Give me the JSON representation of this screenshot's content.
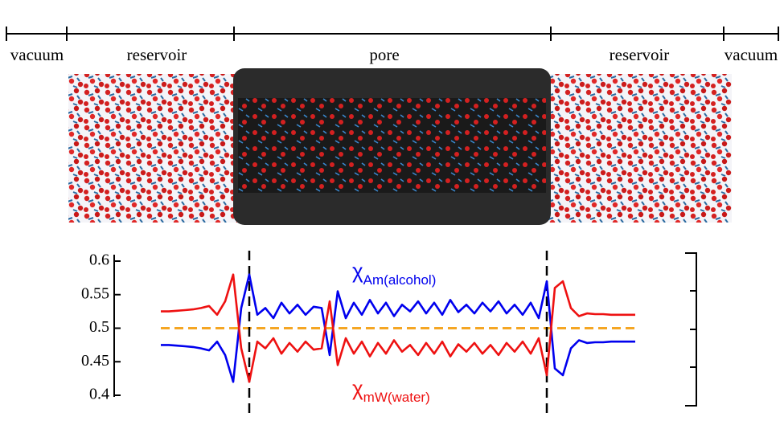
{
  "chart_data": {
    "type": "line",
    "regions": [
      "vacuum",
      "reservoir",
      "pore",
      "reservoir",
      "vacuum"
    ],
    "x": [
      0,
      1,
      2,
      3,
      4,
      5,
      6,
      7,
      8,
      9,
      10,
      11,
      12,
      13,
      14,
      15,
      16,
      17,
      18,
      19,
      20,
      21,
      22,
      23,
      24,
      25,
      26,
      27,
      28,
      29,
      30,
      31,
      32,
      33,
      34,
      35,
      36,
      37,
      38,
      39,
      40,
      41,
      42,
      43,
      44,
      45,
      46,
      47,
      48,
      49,
      50,
      51,
      52,
      53,
      54,
      55,
      56,
      57,
      58,
      59
    ],
    "xlim": [
      0,
      59
    ],
    "ylim": [
      0.4,
      0.6
    ],
    "yticks": [
      0.4,
      0.45,
      0.5,
      0.55,
      0.6
    ],
    "reference_line": {
      "value": 0.5,
      "color": "#f5a623"
    },
    "boundaries": [
      11,
      48
    ],
    "series": [
      {
        "name": "χ",
        "name_sub": "Am(alcohol)",
        "color": "#0000ee",
        "values": [
          0.475,
          0.475,
          0.474,
          0.473,
          0.472,
          0.47,
          0.467,
          0.48,
          0.46,
          0.42,
          0.53,
          0.58,
          0.52,
          0.53,
          0.515,
          0.538,
          0.522,
          0.535,
          0.52,
          0.532,
          0.53,
          0.46,
          0.555,
          0.515,
          0.538,
          0.52,
          0.542,
          0.522,
          0.538,
          0.518,
          0.535,
          0.525,
          0.54,
          0.522,
          0.538,
          0.52,
          0.542,
          0.524,
          0.535,
          0.522,
          0.538,
          0.525,
          0.54,
          0.522,
          0.535,
          0.52,
          0.538,
          0.515,
          0.57,
          0.44,
          0.43,
          0.47,
          0.482,
          0.478,
          0.479,
          0.479,
          0.48,
          0.48,
          0.48,
          0.48
        ]
      },
      {
        "name": "χ",
        "name_sub": "mW(water)",
        "color": "#ee1111",
        "values": [
          0.525,
          0.525,
          0.526,
          0.527,
          0.528,
          0.53,
          0.533,
          0.52,
          0.54,
          0.58,
          0.47,
          0.42,
          0.48,
          0.47,
          0.485,
          0.462,
          0.478,
          0.465,
          0.48,
          0.468,
          0.47,
          0.54,
          0.445,
          0.485,
          0.462,
          0.48,
          0.458,
          0.478,
          0.462,
          0.482,
          0.465,
          0.475,
          0.46,
          0.478,
          0.462,
          0.48,
          0.458,
          0.476,
          0.465,
          0.478,
          0.462,
          0.475,
          0.46,
          0.478,
          0.465,
          0.48,
          0.462,
          0.485,
          0.43,
          0.56,
          0.57,
          0.53,
          0.518,
          0.522,
          0.521,
          0.521,
          0.52,
          0.52,
          0.52,
          0.52
        ]
      }
    ]
  }
}
